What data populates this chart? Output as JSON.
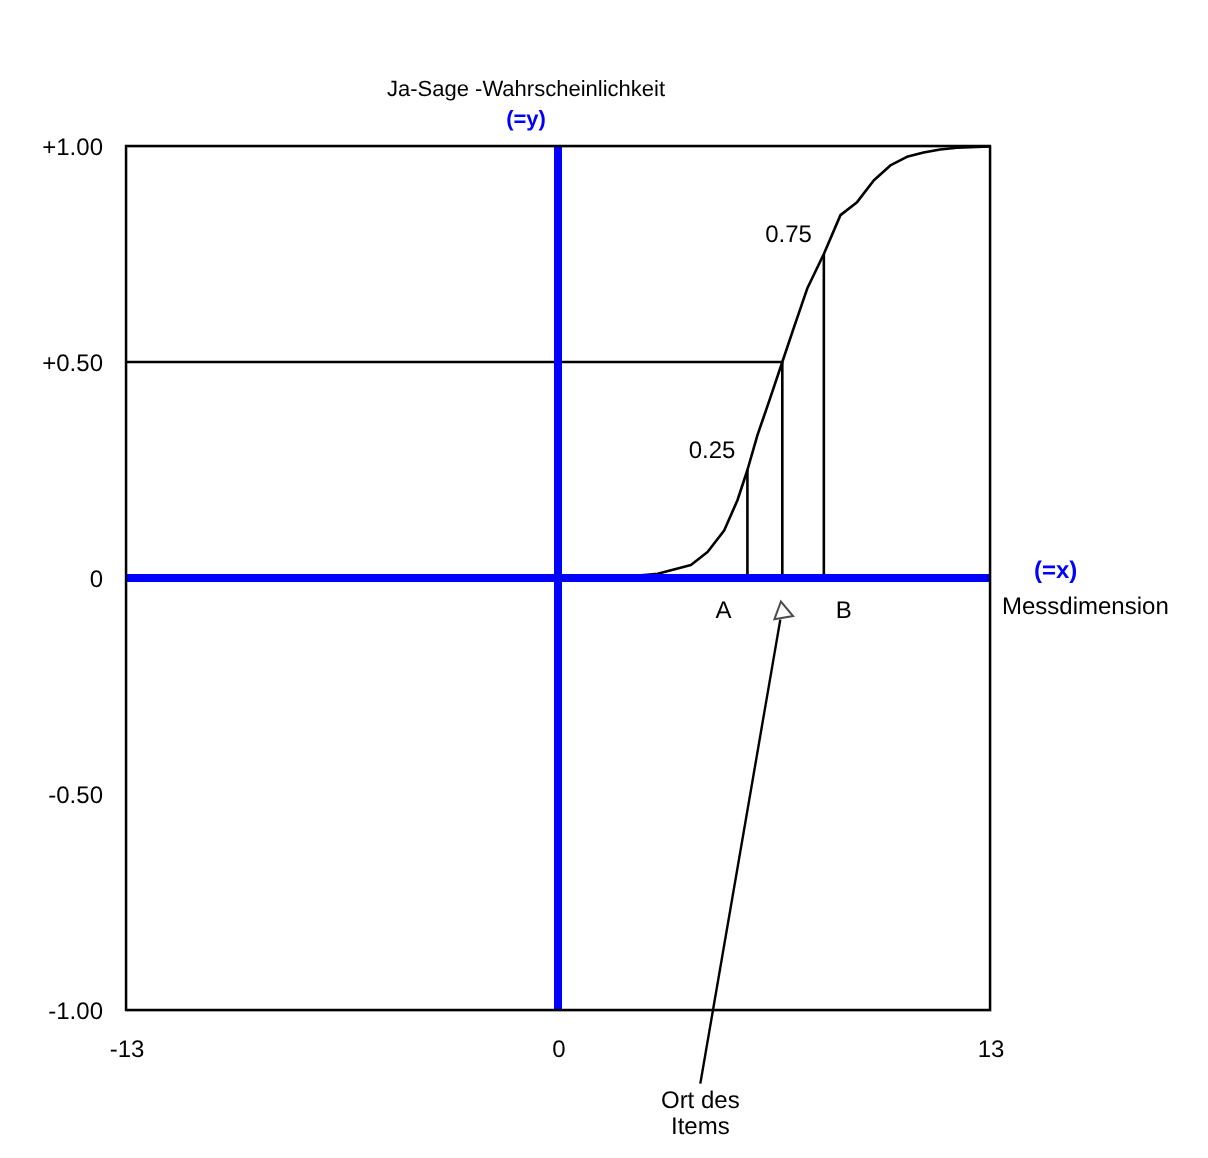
{
  "chart_data": {
    "type": "line",
    "ylabel": "Ja-Sage -Wahrscheinlichkeit",
    "xlabel": "Messdimension",
    "xlim": [
      -13,
      13
    ],
    "xticks": [
      -13,
      0,
      13
    ],
    "ylim": [
      -1,
      1
    ],
    "yticks": [
      {
        "value": -1,
        "label": "-1.00"
      },
      {
        "value": -0.5,
        "label": "-0.50"
      },
      0,
      {
        "value": 0.5,
        "label": "+0.50"
      },
      {
        "value": 1,
        "label": "+1.00"
      }
    ],
    "grid": false,
    "marker": "none",
    "line_style": "solid",
    "series": [
      {
        "color": "#000000",
        "x": [
          -13,
          0,
          2,
          3,
          4,
          4.5,
          5,
          5.4,
          5.7,
          6,
          6.4,
          6.75,
          7.1,
          7.5,
          8,
          8.5,
          9,
          9.5,
          10,
          10.5,
          11,
          11.5,
          12,
          13
        ],
        "values": [
          0,
          0,
          0.003,
          0.01,
          0.03,
          0.06,
          0.11,
          0.18,
          0.25,
          0.33,
          0.42,
          0.5,
          0.58,
          0.67,
          0.75,
          0.84,
          0.87,
          0.92,
          0.955,
          0.975,
          0.985,
          0.992,
          0.996,
          0.999
        ]
      },
      {
        "color": "#000000",
        "x": [
          5.7,
          5.7
        ],
        "values": [
          0,
          0.25
        ]
      },
      {
        "color": "#000000",
        "x": [
          6.75,
          6.75
        ],
        "values": [
          0,
          0.5
        ]
      },
      {
        "color": "#000000",
        "x": [
          8,
          8
        ],
        "values": [
          0,
          0.75
        ]
      },
      {
        "color": "#000000",
        "x": [
          -13,
          6.75
        ],
        "values": [
          0.5,
          0.5
        ]
      },
      {
        "color": "#0000ff",
        "x": [
          0,
          0
        ],
        "values": [
          -1,
          1
        ]
      },
      {
        "color": "#0000ff",
        "x": [
          -13,
          13
        ],
        "values": [
          0,
          0
        ]
      }
    ],
    "annotations": [
      "0.25",
      "0.75",
      "A",
      "B",
      "Ort des Items",
      "(=y)",
      "(=x)"
    ]
  }
}
